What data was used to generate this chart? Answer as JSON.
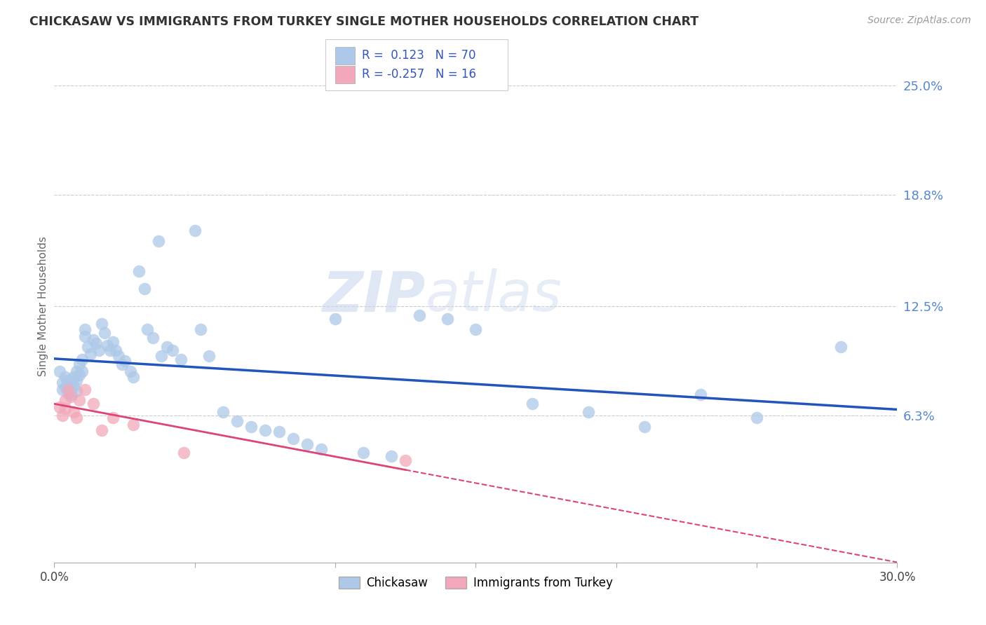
{
  "title": "CHICKASAW VS IMMIGRANTS FROM TURKEY SINGLE MOTHER HOUSEHOLDS CORRELATION CHART",
  "source": "Source: ZipAtlas.com",
  "ylabel": "Single Mother Households",
  "ytick_values": [
    0.25,
    0.188,
    0.125,
    0.063
  ],
  "ytick_labels": [
    "25.0%",
    "18.8%",
    "12.5%",
    "6.3%"
  ],
  "xlim": [
    0.0,
    0.3
  ],
  "ylim": [
    -0.02,
    0.27
  ],
  "legend_label1": "Chickasaw",
  "legend_label2": "Immigrants from Turkey",
  "r1": 0.123,
  "n1": 70,
  "r2": -0.257,
  "n2": 16,
  "color_blue": "#adc8e8",
  "color_pink": "#f2a8ba",
  "line_blue": "#2255bb",
  "line_pink": "#dd4477",
  "watermark_zip": "ZIP",
  "watermark_atlas": "atlas",
  "blue_x": [
    0.002,
    0.003,
    0.003,
    0.004,
    0.004,
    0.005,
    0.005,
    0.005,
    0.006,
    0.006,
    0.006,
    0.007,
    0.007,
    0.008,
    0.008,
    0.008,
    0.009,
    0.009,
    0.01,
    0.01,
    0.011,
    0.011,
    0.012,
    0.013,
    0.014,
    0.015,
    0.016,
    0.017,
    0.018,
    0.019,
    0.02,
    0.021,
    0.022,
    0.023,
    0.024,
    0.025,
    0.027,
    0.028,
    0.03,
    0.032,
    0.033,
    0.035,
    0.037,
    0.038,
    0.04,
    0.042,
    0.045,
    0.05,
    0.052,
    0.055,
    0.06,
    0.065,
    0.07,
    0.075,
    0.08,
    0.085,
    0.09,
    0.095,
    0.1,
    0.11,
    0.12,
    0.13,
    0.14,
    0.15,
    0.17,
    0.19,
    0.21,
    0.23,
    0.25,
    0.28
  ],
  "blue_y": [
    0.088,
    0.082,
    0.078,
    0.085,
    0.079,
    0.083,
    0.08,
    0.076,
    0.082,
    0.078,
    0.075,
    0.085,
    0.08,
    0.088,
    0.083,
    0.077,
    0.092,
    0.086,
    0.095,
    0.088,
    0.112,
    0.108,
    0.102,
    0.098,
    0.106,
    0.104,
    0.1,
    0.115,
    0.11,
    0.103,
    0.1,
    0.105,
    0.1,
    0.097,
    0.092,
    0.094,
    0.088,
    0.085,
    0.145,
    0.135,
    0.112,
    0.107,
    0.162,
    0.097,
    0.102,
    0.1,
    0.095,
    0.168,
    0.112,
    0.097,
    0.065,
    0.06,
    0.057,
    0.055,
    0.054,
    0.05,
    0.047,
    0.044,
    0.118,
    0.042,
    0.04,
    0.12,
    0.118,
    0.112,
    0.07,
    0.065,
    0.057,
    0.075,
    0.062,
    0.102
  ],
  "pink_x": [
    0.002,
    0.003,
    0.004,
    0.004,
    0.005,
    0.006,
    0.007,
    0.008,
    0.009,
    0.011,
    0.014,
    0.017,
    0.021,
    0.028,
    0.046,
    0.125
  ],
  "pink_y": [
    0.068,
    0.063,
    0.072,
    0.067,
    0.078,
    0.074,
    0.065,
    0.062,
    0.072,
    0.078,
    0.07,
    0.055,
    0.062,
    0.058,
    0.042,
    0.038
  ]
}
